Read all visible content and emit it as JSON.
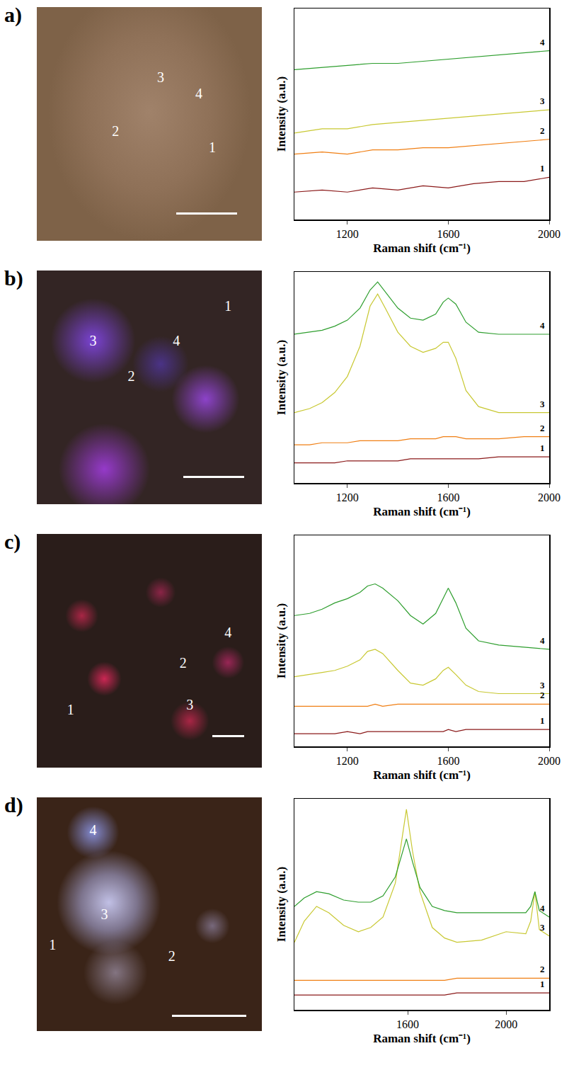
{
  "chart_data": [
    {
      "type": "line",
      "panel": "a)",
      "image_labels": [
        "1",
        "2",
        "3",
        "4"
      ],
      "x_label": "Raman shift (cm⁻¹)",
      "y_label": "Intensity (a.u.)",
      "xlim": [
        990,
        2000
      ],
      "xticks": [
        1200,
        1600,
        2000
      ],
      "ylim": [
        0,
        10
      ],
      "tick_labels": "x",
      "x": [
        990,
        1100,
        1200,
        1300,
        1400,
        1500,
        1600,
        1700,
        1800,
        1900,
        2000
      ],
      "series": [
        {
          "name": "1",
          "color": "#8b1a1a",
          "values": [
            1.3,
            1.4,
            1.3,
            1.5,
            1.4,
            1.6,
            1.5,
            1.7,
            1.8,
            1.8,
            2.0
          ]
        },
        {
          "name": "2",
          "color": "#f07f14",
          "values": [
            3.1,
            3.2,
            3.1,
            3.3,
            3.3,
            3.4,
            3.4,
            3.5,
            3.6,
            3.7,
            3.8
          ]
        },
        {
          "name": "3",
          "color": "#c8c832",
          "values": [
            4.1,
            4.3,
            4.3,
            4.5,
            4.6,
            4.7,
            4.8,
            4.9,
            5.0,
            5.1,
            5.2
          ]
        },
        {
          "name": "4",
          "color": "#2e9e2e",
          "values": [
            7.1,
            7.2,
            7.3,
            7.4,
            7.4,
            7.5,
            7.6,
            7.7,
            7.8,
            7.9,
            8.0
          ]
        }
      ]
    },
    {
      "type": "line",
      "panel": "b)",
      "image_labels": [
        "1",
        "2",
        "3",
        "4"
      ],
      "x_label": "Raman shift (cm⁻¹)",
      "y_label": "Intensity (a.u.)",
      "xlim": [
        990,
        2000
      ],
      "xticks": [
        1200,
        1600,
        2000
      ],
      "ylim": [
        0,
        10.5
      ],
      "tick_labels": "x",
      "x": [
        990,
        1050,
        1100,
        1150,
        1200,
        1250,
        1290,
        1320,
        1350,
        1400,
        1450,
        1500,
        1550,
        1580,
        1600,
        1630,
        1670,
        1720,
        1800,
        1900,
        2000
      ],
      "series": [
        {
          "name": "1",
          "color": "#8b1a1a",
          "values": [
            1.0,
            1.0,
            1.0,
            1.0,
            1.1,
            1.1,
            1.1,
            1.1,
            1.1,
            1.1,
            1.2,
            1.2,
            1.2,
            1.2,
            1.2,
            1.2,
            1.2,
            1.2,
            1.3,
            1.3,
            1.3
          ]
        },
        {
          "name": "2",
          "color": "#f07f14",
          "values": [
            1.9,
            1.9,
            2.0,
            2.0,
            2.0,
            2.1,
            2.1,
            2.1,
            2.1,
            2.1,
            2.2,
            2.2,
            2.2,
            2.3,
            2.3,
            2.3,
            2.2,
            2.2,
            2.2,
            2.3,
            2.3
          ]
        },
        {
          "name": "3",
          "color": "#c8c832",
          "values": [
            3.5,
            3.7,
            4.0,
            4.5,
            5.3,
            6.8,
            8.8,
            9.4,
            8.7,
            7.5,
            6.8,
            6.5,
            6.7,
            7.0,
            7.0,
            6.2,
            4.6,
            3.8,
            3.5,
            3.5,
            3.5
          ]
        },
        {
          "name": "4",
          "color": "#2e9e2e",
          "values": [
            7.4,
            7.5,
            7.6,
            7.8,
            8.1,
            8.7,
            9.6,
            10.0,
            9.5,
            8.7,
            8.2,
            8.1,
            8.4,
            9.0,
            9.2,
            8.9,
            8.0,
            7.5,
            7.4,
            7.4,
            7.4
          ]
        }
      ]
    },
    {
      "type": "line",
      "panel": "c)",
      "image_labels": [
        "1",
        "2",
        "3",
        "4"
      ],
      "x_label": "Raman shift (cm⁻¹)",
      "y_label": "Intensity (a.u.)",
      "xlim": [
        990,
        2000
      ],
      "xticks": [
        1200,
        1600,
        2000
      ],
      "ylim": [
        0,
        10
      ],
      "tick_labels": "x",
      "x": [
        990,
        1050,
        1100,
        1150,
        1200,
        1250,
        1280,
        1310,
        1340,
        1400,
        1450,
        1500,
        1550,
        1580,
        1600,
        1630,
        1670,
        1720,
        1800,
        1900,
        2000
      ],
      "series": [
        {
          "name": "1",
          "color": "#8b1a1a",
          "values": [
            0.6,
            0.6,
            0.6,
            0.6,
            0.7,
            0.6,
            0.7,
            0.7,
            0.7,
            0.7,
            0.7,
            0.7,
            0.7,
            0.7,
            0.8,
            0.7,
            0.8,
            0.8,
            0.8,
            0.8,
            0.8
          ]
        },
        {
          "name": "2",
          "color": "#f07f14",
          "values": [
            1.9,
            1.9,
            1.9,
            1.9,
            1.9,
            1.9,
            1.9,
            2.0,
            1.9,
            2.0,
            2.0,
            2.0,
            2.0,
            2.0,
            2.0,
            2.0,
            2.0,
            2.0,
            2.0,
            2.0,
            2.0
          ]
        },
        {
          "name": "3",
          "color": "#c8c832",
          "values": [
            3.3,
            3.4,
            3.5,
            3.6,
            3.8,
            4.1,
            4.5,
            4.6,
            4.4,
            3.6,
            3.0,
            2.9,
            3.2,
            3.6,
            3.75,
            3.4,
            2.9,
            2.6,
            2.5,
            2.5,
            2.5
          ]
        },
        {
          "name": "4",
          "color": "#2e9e2e",
          "values": [
            6.2,
            6.3,
            6.5,
            6.8,
            7.0,
            7.3,
            7.6,
            7.7,
            7.5,
            6.9,
            6.2,
            5.8,
            6.3,
            7.0,
            7.5,
            6.8,
            5.6,
            5.0,
            4.8,
            4.7,
            4.6
          ]
        }
      ]
    },
    {
      "type": "line",
      "panel": "d)",
      "image_labels": [
        "1",
        "2",
        "3",
        "4"
      ],
      "x_label": "Raman shift (cm⁻¹)",
      "y_label": "Intensity (a.u.)",
      "xlim": [
        1140,
        2175
      ],
      "xticks": [
        1600,
        2000
      ],
      "ylim": [
        0,
        10
      ],
      "tick_labels": "x",
      "x": [
        1140,
        1180,
        1230,
        1280,
        1340,
        1400,
        1450,
        1500,
        1550,
        1575,
        1595,
        1620,
        1650,
        1700,
        1750,
        1800,
        1900,
        2000,
        2080,
        2100,
        2117,
        2135,
        2175
      ],
      "series": [
        {
          "name": "1",
          "color": "#8b1a1a",
          "values": [
            0.7,
            0.7,
            0.7,
            0.7,
            0.7,
            0.7,
            0.7,
            0.7,
            0.7,
            0.7,
            0.7,
            0.7,
            0.7,
            0.7,
            0.7,
            0.8,
            0.8,
            0.8,
            0.8,
            0.8,
            0.8,
            0.8,
            0.8
          ]
        },
        {
          "name": "2",
          "color": "#f07f14",
          "values": [
            1.4,
            1.4,
            1.4,
            1.4,
            1.4,
            1.4,
            1.4,
            1.4,
            1.4,
            1.4,
            1.4,
            1.4,
            1.4,
            1.4,
            1.4,
            1.5,
            1.5,
            1.5,
            1.5,
            1.5,
            1.5,
            1.5,
            1.5
          ]
        },
        {
          "name": "3",
          "color": "#c8c832",
          "values": [
            3.2,
            4.2,
            4.9,
            4.6,
            4.0,
            3.7,
            3.9,
            4.4,
            6.0,
            8.0,
            9.5,
            7.5,
            5.6,
            3.9,
            3.4,
            3.2,
            3.3,
            3.7,
            3.6,
            4.2,
            5.6,
            3.8,
            3.5
          ]
        },
        {
          "name": "4",
          "color": "#2e9e2e",
          "values": [
            4.9,
            5.3,
            5.6,
            5.5,
            5.2,
            5.1,
            5.1,
            5.4,
            6.3,
            7.3,
            8.1,
            7.0,
            5.8,
            4.9,
            4.7,
            4.6,
            4.6,
            4.6,
            4.6,
            4.9,
            5.6,
            4.7,
            4.4
          ]
        }
      ]
    }
  ]
}
